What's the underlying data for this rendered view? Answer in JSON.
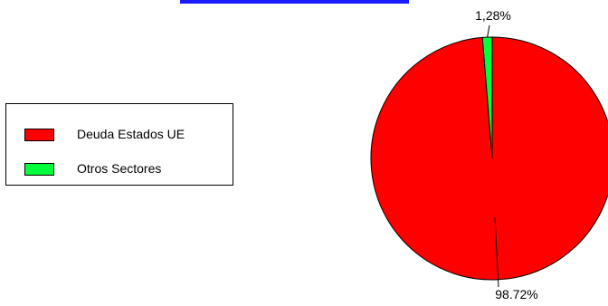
{
  "chart_data": {
    "type": "pie",
    "slices": [
      {
        "label": "Deuda Estados UE",
        "value": 98.72,
        "display": "98.72%",
        "color": "#ff0000"
      },
      {
        "label": "Otros Sectores",
        "value": 1.28,
        "display": "1,28%",
        "color": "#00ff3c"
      }
    ],
    "legend_position": "left"
  }
}
